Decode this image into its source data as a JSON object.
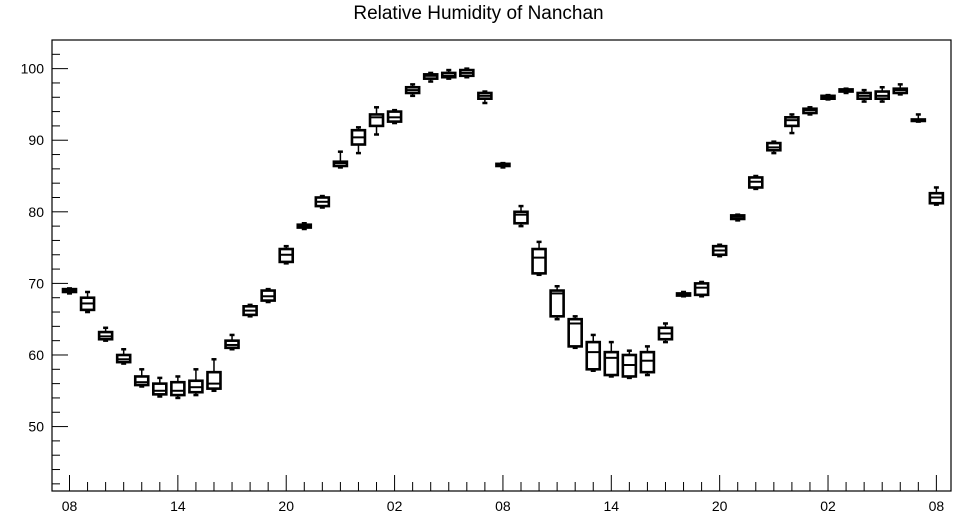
{
  "chart_data": {
    "type": "box",
    "title": "Relative Humidity of Nanchan",
    "xlabel": "",
    "ylabel": "",
    "ylim": [
      41,
      104
    ],
    "y_ticks": [
      50,
      60,
      70,
      80,
      90,
      100
    ],
    "x_tick_labels": [
      {
        "hour_index": 0,
        "label": "08"
      },
      {
        "hour_index": 6,
        "label": "14"
      },
      {
        "hour_index": 12,
        "label": "20"
      },
      {
        "hour_index": 18,
        "label": "02"
      },
      {
        "hour_index": 24,
        "label": "08"
      },
      {
        "hour_index": 30,
        "label": "14"
      },
      {
        "hour_index": 36,
        "label": "20"
      },
      {
        "hour_index": 42,
        "label": "02"
      },
      {
        "hour_index": 48,
        "label": "08"
      }
    ],
    "grid": false,
    "boxes": [
      {
        "hour_index": 0,
        "min": 68.6,
        "q1": 68.8,
        "median": 69.0,
        "q3": 69.2,
        "max": 69.3
      },
      {
        "hour_index": 1,
        "min": 66.0,
        "q1": 66.3,
        "median": 67.2,
        "q3": 68.0,
        "max": 68.8
      },
      {
        "hour_index": 2,
        "min": 62.0,
        "q1": 62.2,
        "median": 62.6,
        "q3": 63.2,
        "max": 63.8
      },
      {
        "hour_index": 3,
        "min": 58.8,
        "q1": 59.0,
        "median": 59.4,
        "q3": 60.0,
        "max": 60.8
      },
      {
        "hour_index": 4,
        "min": 55.6,
        "q1": 55.8,
        "median": 56.2,
        "q3": 57.0,
        "max": 58.0
      },
      {
        "hour_index": 5,
        "min": 54.2,
        "q1": 54.5,
        "median": 55.0,
        "q3": 56.0,
        "max": 56.8
      },
      {
        "hour_index": 6,
        "min": 54.0,
        "q1": 54.4,
        "median": 55.0,
        "q3": 56.2,
        "max": 57.0
      },
      {
        "hour_index": 7,
        "min": 54.4,
        "q1": 54.8,
        "median": 55.5,
        "q3": 56.4,
        "max": 58.0
      },
      {
        "hour_index": 8,
        "min": 55.0,
        "q1": 55.3,
        "median": 56.0,
        "q3": 57.6,
        "max": 59.4
      },
      {
        "hour_index": 9,
        "min": 60.8,
        "q1": 61.0,
        "median": 61.4,
        "q3": 62.0,
        "max": 62.8
      },
      {
        "hour_index": 10,
        "min": 65.4,
        "q1": 65.6,
        "median": 66.2,
        "q3": 66.8,
        "max": 67.0
      },
      {
        "hour_index": 11,
        "min": 67.4,
        "q1": 67.6,
        "median": 68.2,
        "q3": 69.0,
        "max": 69.2
      },
      {
        "hour_index": 12,
        "min": 72.8,
        "q1": 73.0,
        "median": 74.0,
        "q3": 74.8,
        "max": 75.2
      },
      {
        "hour_index": 13,
        "min": 77.6,
        "q1": 77.8,
        "median": 78.0,
        "q3": 78.2,
        "max": 78.4
      },
      {
        "hour_index": 14,
        "min": 80.6,
        "q1": 80.8,
        "median": 81.4,
        "q3": 82.0,
        "max": 82.2
      },
      {
        "hour_index": 15,
        "min": 86.2,
        "q1": 86.4,
        "median": 86.8,
        "q3": 87.0,
        "max": 88.4
      },
      {
        "hour_index": 16,
        "min": 88.2,
        "q1": 89.4,
        "median": 90.4,
        "q3": 91.4,
        "max": 91.8
      },
      {
        "hour_index": 17,
        "min": 90.8,
        "q1": 92.0,
        "median": 93.2,
        "q3": 93.6,
        "max": 94.6
      },
      {
        "hour_index": 18,
        "min": 92.4,
        "q1": 92.6,
        "median": 93.2,
        "q3": 94.0,
        "max": 94.2
      },
      {
        "hour_index": 19,
        "min": 96.2,
        "q1": 96.6,
        "median": 97.0,
        "q3": 97.4,
        "max": 97.8
      },
      {
        "hour_index": 20,
        "min": 98.2,
        "q1": 98.6,
        "median": 99.0,
        "q3": 99.2,
        "max": 99.4
      },
      {
        "hour_index": 21,
        "min": 98.6,
        "q1": 98.8,
        "median": 99.0,
        "q3": 99.4,
        "max": 99.8
      },
      {
        "hour_index": 22,
        "min": 98.8,
        "q1": 99.0,
        "median": 99.4,
        "q3": 99.8,
        "max": 100.0
      },
      {
        "hour_index": 23,
        "min": 95.2,
        "q1": 95.8,
        "median": 96.2,
        "q3": 96.6,
        "max": 96.8
      },
      {
        "hour_index": 24,
        "min": 86.2,
        "q1": 86.4,
        "median": 86.6,
        "q3": 86.7,
        "max": 86.8
      },
      {
        "hour_index": 25,
        "min": 78.0,
        "q1": 78.4,
        "median": 79.6,
        "q3": 80.0,
        "max": 80.8
      },
      {
        "hour_index": 26,
        "min": 71.2,
        "q1": 71.4,
        "median": 73.6,
        "q3": 74.8,
        "max": 75.8
      },
      {
        "hour_index": 27,
        "min": 65.0,
        "q1": 65.4,
        "median": 68.6,
        "q3": 69.0,
        "max": 69.6
      },
      {
        "hour_index": 28,
        "min": 61.0,
        "q1": 61.2,
        "median": 64.4,
        "q3": 65.0,
        "max": 65.4
      },
      {
        "hour_index": 29,
        "min": 57.8,
        "q1": 58.0,
        "median": 60.4,
        "q3": 61.8,
        "max": 62.8
      },
      {
        "hour_index": 30,
        "min": 57.0,
        "q1": 57.2,
        "median": 59.6,
        "q3": 60.4,
        "max": 61.8
      },
      {
        "hour_index": 31,
        "min": 56.8,
        "q1": 57.0,
        "median": 58.6,
        "q3": 60.0,
        "max": 60.6
      },
      {
        "hour_index": 32,
        "min": 57.2,
        "q1": 57.6,
        "median": 59.2,
        "q3": 60.4,
        "max": 61.2
      },
      {
        "hour_index": 33,
        "min": 61.8,
        "q1": 62.2,
        "median": 63.0,
        "q3": 63.8,
        "max": 64.4
      },
      {
        "hour_index": 34,
        "min": 68.2,
        "q1": 68.3,
        "median": 68.4,
        "q3": 68.6,
        "max": 68.8
      },
      {
        "hour_index": 35,
        "min": 68.2,
        "q1": 68.4,
        "median": 69.4,
        "q3": 70.0,
        "max": 70.2
      },
      {
        "hour_index": 36,
        "min": 73.8,
        "q1": 74.0,
        "median": 74.6,
        "q3": 75.2,
        "max": 75.4
      },
      {
        "hour_index": 37,
        "min": 78.8,
        "q1": 79.0,
        "median": 79.3,
        "q3": 79.5,
        "max": 79.6
      },
      {
        "hour_index": 38,
        "min": 83.2,
        "q1": 83.4,
        "median": 84.2,
        "q3": 84.8,
        "max": 85.0
      },
      {
        "hour_index": 39,
        "min": 88.2,
        "q1": 88.6,
        "median": 89.0,
        "q3": 89.6,
        "max": 89.8
      },
      {
        "hour_index": 40,
        "min": 91.0,
        "q1": 92.0,
        "median": 92.8,
        "q3": 93.2,
        "max": 93.6
      },
      {
        "hour_index": 41,
        "min": 93.6,
        "q1": 93.8,
        "median": 94.2,
        "q3": 94.4,
        "max": 94.6
      },
      {
        "hour_index": 42,
        "min": 95.7,
        "q1": 95.8,
        "median": 96.0,
        "q3": 96.2,
        "max": 96.3
      },
      {
        "hour_index": 43,
        "min": 96.6,
        "q1": 96.8,
        "median": 97.0,
        "q3": 97.1,
        "max": 97.2
      },
      {
        "hour_index": 44,
        "min": 95.4,
        "q1": 95.8,
        "median": 96.2,
        "q3": 96.6,
        "max": 97.0
      },
      {
        "hour_index": 45,
        "min": 95.4,
        "q1": 95.8,
        "median": 96.2,
        "q3": 96.8,
        "max": 97.4
      },
      {
        "hour_index": 46,
        "min": 96.4,
        "q1": 96.6,
        "median": 97.0,
        "q3": 97.2,
        "max": 97.8
      },
      {
        "hour_index": 47,
        "min": 92.6,
        "q1": 92.7,
        "median": 92.8,
        "q3": 92.9,
        "max": 93.6
      },
      {
        "hour_index": 48,
        "min": 81.0,
        "q1": 81.2,
        "median": 82.0,
        "q3": 82.6,
        "max": 83.4
      }
    ],
    "colors": {
      "axis": "#000000",
      "box_stroke": "#000000",
      "box_fill": "#ffffff",
      "background": "#ffffff"
    }
  }
}
